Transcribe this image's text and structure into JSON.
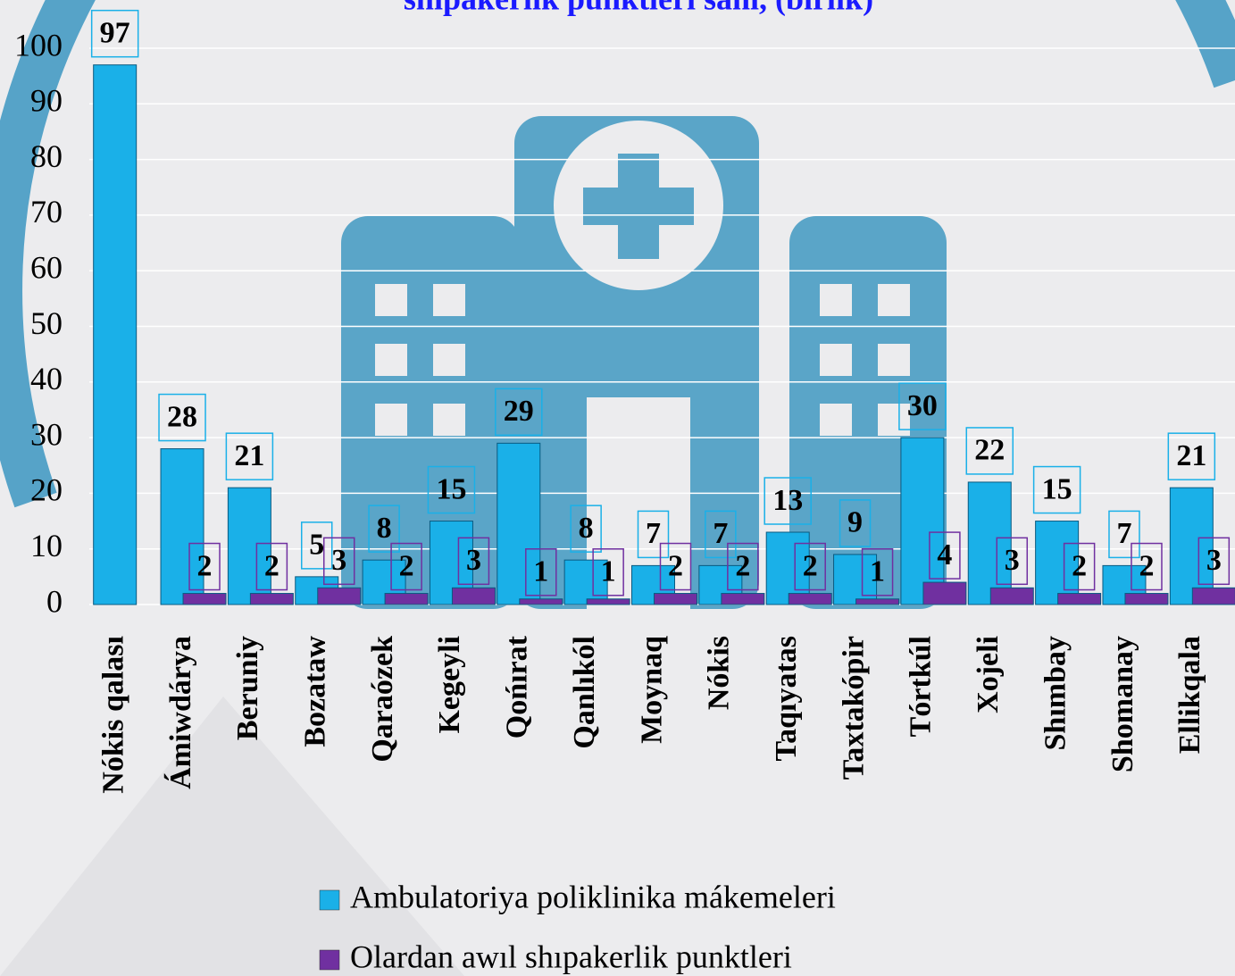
{
  "chart_data": {
    "type": "bar",
    "title": "shıpakerlik punktleri sanı, (birlik)",
    "categories": [
      "Nókis qalası",
      "Ámiwdárya",
      "Beruniy",
      "Bozataw",
      "Qaraózek",
      "Kegeyli",
      "Qońırat",
      "Qanlıkól",
      "Moynaq",
      "Nókis",
      "Taqıyatas",
      "Taxtakópir",
      "Tórtkúl",
      "Xojeli",
      "Shımbay",
      "Shomanay",
      "Ellikqala"
    ],
    "series": [
      {
        "name": "Ambulatoriya poliklinika mákemeleri",
        "color": "#1ab0e8",
        "values": [
          97,
          28,
          21,
          5,
          8,
          15,
          29,
          8,
          7,
          7,
          13,
          9,
          30,
          22,
          15,
          7,
          21
        ]
      },
      {
        "name": "Olardan awıl shıpakerlik punktleri",
        "color": "#7030a0",
        "values": [
          null,
          2,
          2,
          3,
          2,
          3,
          1,
          1,
          2,
          2,
          2,
          1,
          4,
          3,
          2,
          2,
          3
        ]
      }
    ],
    "ylim": [
      0,
      100
    ],
    "yticks": [
      0,
      10,
      20,
      30,
      40,
      50,
      60,
      70,
      80,
      90,
      100
    ],
    "grid": true
  }
}
